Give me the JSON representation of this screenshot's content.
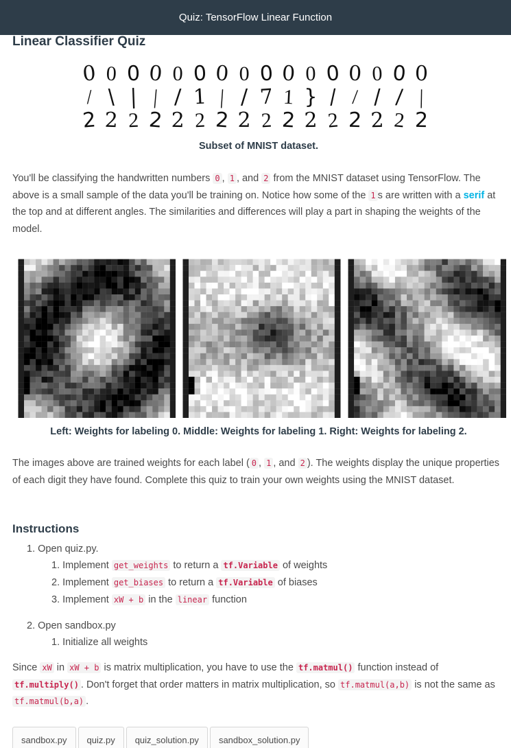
{
  "header": {
    "title": "Quiz: TensorFlow Linear Function"
  },
  "page": {
    "title": "Linear Classifier Quiz"
  },
  "mnist": {
    "caption": "Subset of MNIST dataset.",
    "rows": [
      [
        "0",
        "0",
        "0",
        "0",
        "0",
        "0",
        "0",
        "0",
        "0",
        "0",
        "0",
        "0",
        "0",
        "0",
        "0",
        "0"
      ],
      [
        "/",
        "\\",
        "|",
        "|",
        "/",
        "1",
        "|",
        "/",
        "7",
        "1",
        "}",
        "/",
        "/",
        "/",
        "/",
        "|"
      ],
      [
        "2",
        "2",
        "2",
        "2",
        "2",
        "2",
        "2",
        "2",
        "2",
        "2",
        "2",
        "2",
        "2",
        "2",
        "2",
        "2"
      ]
    ]
  },
  "intro": {
    "t1": "You'll be classifying the handwritten numbers ",
    "c0": "0",
    "t2": ", ",
    "c1": "1",
    "t3": ", and ",
    "c2": "2",
    "t4": " from the MNIST dataset using TensorFlow. The above is a small sample of the data you'll be training on. Notice how some of the ",
    "c3": "1",
    "t5": "s are written with a ",
    "link": "serif",
    "t6": " at the top and at different angles. The similarities and differences will play a part in shaping the weights of the model."
  },
  "weights_caption": "Left: Weights for labeling 0. Middle: Weights for labeling 1. Right: Weights for labeling 2.",
  "weights_desc": {
    "t1": "The images above are trained weights for each label (",
    "c0": "0",
    "t2": ", ",
    "c1": "1",
    "t3": ", and ",
    "c2": "2",
    "t4": "). The weights display the unique properties of each digit they have found. Complete this quiz to train your own weights using the MNIST dataset."
  },
  "instructions": {
    "heading": "Instructions",
    "step1": "1. Open quiz.py.",
    "s1a_pre": "1. Implement ",
    "s1a_code": "get_weights",
    "s1a_mid": " to return a ",
    "s1a_code2": "tf.Variable",
    "s1a_post": " of weights",
    "s1b_pre": "2. Implement ",
    "s1b_code": "get_biases",
    "s1b_mid": " to return a ",
    "s1b_code2": "tf.Variable",
    "s1b_post": " of biases",
    "s1c_pre": "3. Implement ",
    "s1c_code": "xW + b",
    "s1c_mid": " in the ",
    "s1c_code2": "linear",
    "s1c_post": " function",
    "step2": "2. Open sandbox.py",
    "s2a": "1. Initialize all weights"
  },
  "note": {
    "t1": "Since ",
    "c1": "xW",
    "t2": " in ",
    "c2": "xW + b",
    "t3": " is matrix multiplication, you have to use the ",
    "c3": "tf.matmul()",
    "t4": " function instead of ",
    "c4": "tf.multiply()",
    "t5": ". Don't forget that order matters in matrix multiplication, so ",
    "c5": "tf.matmul(a,b)",
    "t6": " is not the same as ",
    "c6": "tf.matmul(b,a)",
    "t7": "."
  },
  "tabs": [
    "sandbox.py",
    "quiz.py",
    "quiz_solution.py",
    "sandbox_solution.py"
  ],
  "colors": {
    "header_bg": "#2e3d49",
    "link": "#02b3e4",
    "code_fg": "#c7254e"
  }
}
